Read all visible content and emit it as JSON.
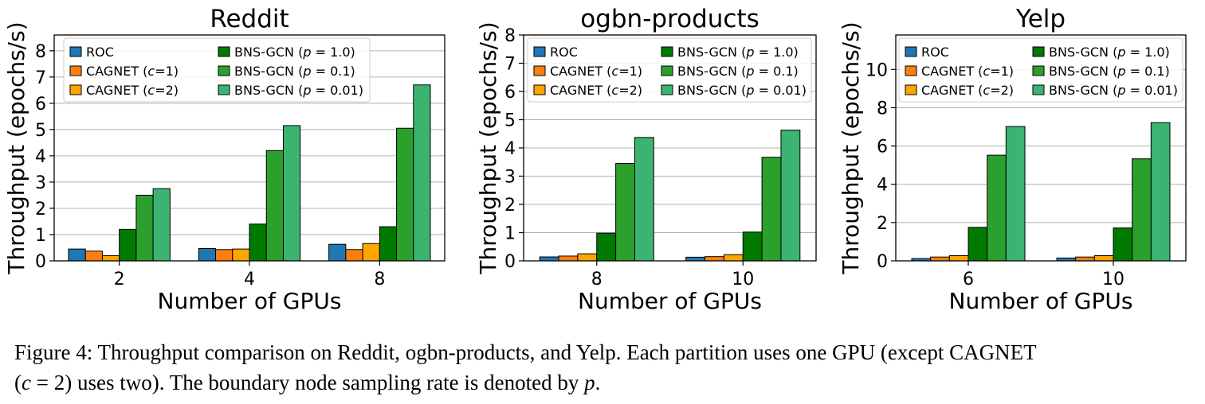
{
  "charts_meta": {
    "series_colors": [
      "#1f77b4",
      "#ff7f0e",
      "#ffa500",
      "#007a00",
      "#2ca02c",
      "#3cb371"
    ]
  },
  "chart_data": [
    {
      "type": "bar",
      "title": "Reddit",
      "xlabel": "Number of GPUs",
      "ylabel": "Throughput (epochs/s)",
      "categories": [
        "2",
        "4",
        "8"
      ],
      "ylim": [
        0,
        8.6
      ],
      "yticks": [
        0,
        1,
        2,
        3,
        4,
        5,
        6,
        7,
        8
      ],
      "grid": "y",
      "legend": "top-left",
      "series": [
        {
          "name": "ROC",
          "values": [
            0.45,
            0.47,
            0.63
          ]
        },
        {
          "name": "CAGNET (c=1)",
          "values": [
            0.37,
            0.43,
            0.43
          ]
        },
        {
          "name": "CAGNET (c=2)",
          "values": [
            0.2,
            0.45,
            0.66
          ]
        },
        {
          "name": "BNS-GCN (p = 1.0)",
          "values": [
            1.2,
            1.4,
            1.3
          ]
        },
        {
          "name": "BNS-GCN (p = 0.1)",
          "values": [
            2.5,
            4.2,
            5.05
          ]
        },
        {
          "name": "BNS-GCN (p = 0.01)",
          "values": [
            2.75,
            5.15,
            6.7
          ]
        }
      ]
    },
    {
      "type": "bar",
      "title": "ogbn-products",
      "xlabel": "Number of GPUs",
      "ylabel": "Throughput (epochs/s)",
      "categories": [
        "8",
        "10"
      ],
      "ylim": [
        0,
        8
      ],
      "yticks": [
        0,
        1,
        2,
        3,
        4,
        5,
        6,
        7,
        8
      ],
      "grid": "y",
      "legend": "top",
      "series": [
        {
          "name": "ROC",
          "values": [
            0.14,
            0.13
          ]
        },
        {
          "name": "CAGNET (c=1)",
          "values": [
            0.17,
            0.15
          ]
        },
        {
          "name": "CAGNET (c=2)",
          "values": [
            0.25,
            0.22
          ]
        },
        {
          "name": "BNS-GCN (p = 1.0)",
          "values": [
            0.98,
            1.02
          ]
        },
        {
          "name": "BNS-GCN (p = 0.1)",
          "values": [
            3.45,
            3.67
          ]
        },
        {
          "name": "BNS-GCN (p = 0.01)",
          "values": [
            4.37,
            4.63
          ]
        }
      ]
    },
    {
      "type": "bar",
      "title": "Yelp",
      "xlabel": "Number of GPUs",
      "ylabel": "Throughput (epochs/s)",
      "categories": [
        "6",
        "10"
      ],
      "ylim": [
        0,
        11.8
      ],
      "yticks": [
        0,
        2,
        4,
        6,
        8,
        10
      ],
      "grid": "y",
      "legend": "top",
      "series": [
        {
          "name": "ROC",
          "values": [
            0.12,
            0.15
          ]
        },
        {
          "name": "CAGNET (c=1)",
          "values": [
            0.2,
            0.2
          ]
        },
        {
          "name": "CAGNET (c=2)",
          "values": [
            0.27,
            0.27
          ]
        },
        {
          "name": "BNS-GCN (p = 1.0)",
          "values": [
            1.75,
            1.72
          ]
        },
        {
          "name": "BNS-GCN (p = 0.1)",
          "values": [
            5.52,
            5.33
          ]
        },
        {
          "name": "BNS-GCN (p = 0.01)",
          "values": [
            7.02,
            7.22
          ]
        }
      ]
    }
  ],
  "caption": {
    "line1": "Figure 4: Throughput comparison on Reddit, ogbn-products, and Yelp. Each partition uses one GPU (except CAGNET",
    "line2_open": "(",
    "line2_var": "c",
    "line2_rest": " = 2) uses two). The boundary node sampling rate is denoted by ",
    "line2_var2": "p",
    "line2_end": "."
  }
}
